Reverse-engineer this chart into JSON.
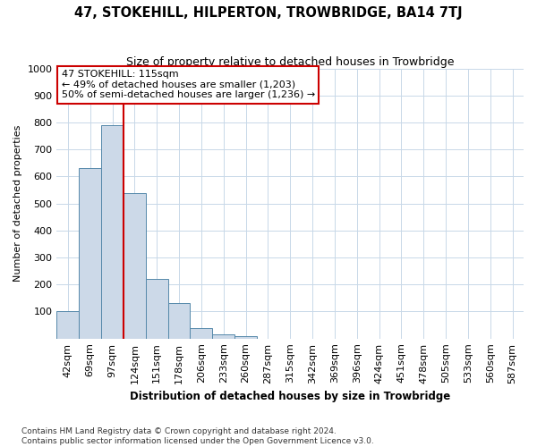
{
  "title": "47, STOKEHILL, HILPERTON, TROWBRIDGE, BA14 7TJ",
  "subtitle": "Size of property relative to detached houses in Trowbridge",
  "xlabel": "Distribution of detached houses by size in Trowbridge",
  "ylabel": "Number of detached properties",
  "categories": [
    "42sqm",
    "69sqm",
    "97sqm",
    "124sqm",
    "151sqm",
    "178sqm",
    "206sqm",
    "233sqm",
    "260sqm",
    "287sqm",
    "315sqm",
    "342sqm",
    "369sqm",
    "396sqm",
    "424sqm",
    "451sqm",
    "478sqm",
    "505sqm",
    "533sqm",
    "560sqm",
    "587sqm"
  ],
  "values": [
    100,
    630,
    790,
    540,
    220,
    130,
    40,
    15,
    10,
    0,
    0,
    0,
    0,
    0,
    0,
    0,
    0,
    0,
    0,
    0,
    0
  ],
  "bar_color": "#ccd9e8",
  "bar_edge_color": "#5588aa",
  "vline_color": "#cc0000",
  "annotation_line1": "47 STOKEHILL: 115sqm",
  "annotation_line2": "← 49% of detached houses are smaller (1,203)",
  "annotation_line3": "50% of semi-detached houses are larger (1,236) →",
  "annotation_box_color": "#ffffff",
  "annotation_box_edge": "#cc0000",
  "ylim": [
    0,
    1000
  ],
  "yticks": [
    0,
    100,
    200,
    300,
    400,
    500,
    600,
    700,
    800,
    900,
    1000
  ],
  "footer": "Contains HM Land Registry data © Crown copyright and database right 2024.\nContains public sector information licensed under the Open Government Licence v3.0.",
  "bg_color": "#ffffff",
  "grid_color": "#c8d8e8",
  "title_fontsize": 10.5,
  "subtitle_fontsize": 9,
  "xlabel_fontsize": 8.5,
  "ylabel_fontsize": 8,
  "tick_fontsize": 8,
  "annot_fontsize": 8,
  "footer_fontsize": 6.5
}
